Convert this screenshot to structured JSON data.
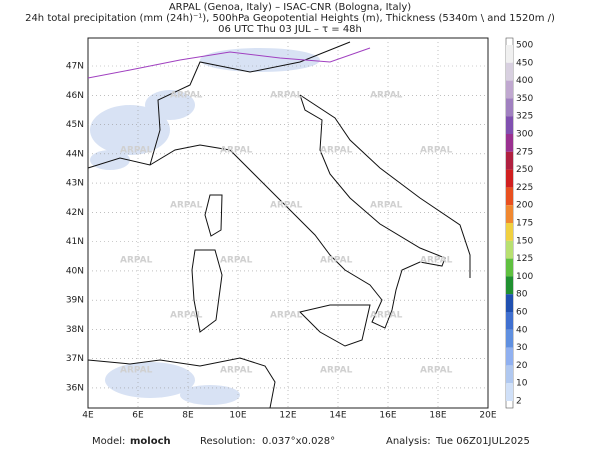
{
  "header": {
    "lines": [
      "ARPAL (Genoa, Italy)  –  ISAC-CNR (Bologna, Italy)",
      "24h total precipitation (mm (24h)⁻¹), 500hPa Geopotential Heights (m), Thickness (5340m \\ and 1520m /)",
      "06 UTC Thu 03 JUL  –  τ = 48h"
    ]
  },
  "map": {
    "lat_labels": [
      "47N",
      "46N",
      "45N",
      "44N",
      "43N",
      "42N",
      "41N",
      "40N",
      "39N",
      "38N",
      "37N",
      "36N"
    ],
    "lon_labels": [
      "4E",
      "6E",
      "8E",
      "10E",
      "12E",
      "14E",
      "16E",
      "18E",
      "20E"
    ],
    "watermark": "ARPAL"
  },
  "colorbar": {
    "labels": [
      500,
      450,
      400,
      350,
      325,
      300,
      275,
      250,
      225,
      200,
      175,
      150,
      125,
      100,
      80,
      60,
      40,
      30,
      20,
      10,
      2
    ],
    "colors": [
      "#f0f0f0",
      "#d8d0e0",
      "#c0a8d0",
      "#a080c0",
      "#8050b0",
      "#9a3090",
      "#b02040",
      "#d02020",
      "#e85020",
      "#f08830",
      "#f0d040",
      "#b8e070",
      "#60c040",
      "#209030",
      "#2050b0",
      "#4070d0",
      "#6090e0",
      "#90b0f0",
      "#b0c8f0",
      "#d0e0f8"
    ]
  },
  "footer": {
    "model_label": "Model:",
    "model": "moloch",
    "resolution_label": "Resolution:",
    "resolution": "0.037°x0.028°",
    "analysis_label": "Analysis:",
    "analysis": "Tue 06Z01JUL2025"
  }
}
